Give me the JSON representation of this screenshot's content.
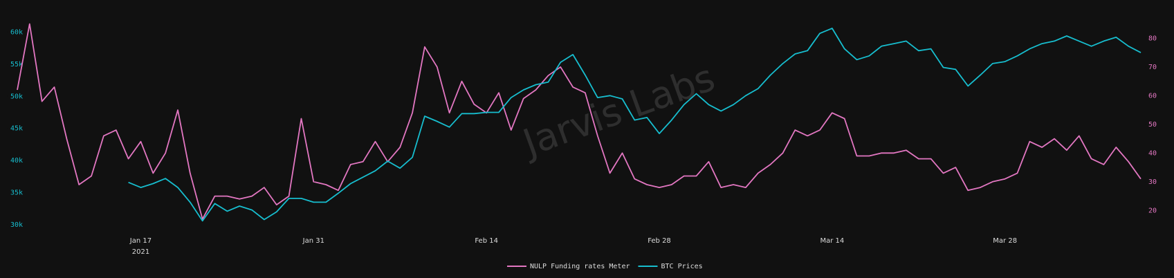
{
  "chart_data": {
    "type": "line",
    "watermark": "Jarvis Labs",
    "x": [
      "2021-01-07",
      "2021-01-08",
      "2021-01-09",
      "2021-01-10",
      "2021-01-11",
      "2021-01-12",
      "2021-01-13",
      "2021-01-14",
      "2021-01-15",
      "2021-01-16",
      "2021-01-17",
      "2021-01-18",
      "2021-01-19",
      "2021-01-20",
      "2021-01-21",
      "2021-01-22",
      "2021-01-23",
      "2021-01-24",
      "2021-01-25",
      "2021-01-26",
      "2021-01-27",
      "2021-01-28",
      "2021-01-29",
      "2021-01-30",
      "2021-01-31",
      "2021-02-01",
      "2021-02-02",
      "2021-02-03",
      "2021-02-04",
      "2021-02-05",
      "2021-02-06",
      "2021-02-07",
      "2021-02-08",
      "2021-02-09",
      "2021-02-10",
      "2021-02-11",
      "2021-02-12",
      "2021-02-13",
      "2021-02-14",
      "2021-02-15",
      "2021-02-16",
      "2021-02-17",
      "2021-02-18",
      "2021-02-19",
      "2021-02-20",
      "2021-02-21",
      "2021-02-22",
      "2021-02-23",
      "2021-02-24",
      "2021-02-25",
      "2021-02-26",
      "2021-02-27",
      "2021-02-28",
      "2021-03-01",
      "2021-03-02",
      "2021-03-03",
      "2021-03-04",
      "2021-03-05",
      "2021-03-06",
      "2021-03-07",
      "2021-03-08",
      "2021-03-09",
      "2021-03-10",
      "2021-03-11",
      "2021-03-12",
      "2021-03-13",
      "2021-03-14",
      "2021-03-15",
      "2021-03-16",
      "2021-03-17",
      "2021-03-18",
      "2021-03-19",
      "2021-03-20",
      "2021-03-21",
      "2021-03-22",
      "2021-03-23",
      "2021-03-24",
      "2021-03-25",
      "2021-03-26",
      "2021-03-27",
      "2021-03-28",
      "2021-03-29",
      "2021-03-30",
      "2021-03-31",
      "2021-04-01",
      "2021-04-02",
      "2021-04-03",
      "2021-04-04",
      "2021-04-05",
      "2021-04-06",
      "2021-04-07",
      "2021-04-08"
    ],
    "xlim": [
      "2021-01-07",
      "2021-04-08"
    ],
    "xticks": [
      {
        "value": "2021-01-17",
        "label": "Jan 17"
      },
      {
        "value": "2021-01-31",
        "label": "Jan 31"
      },
      {
        "value": "2021-02-14",
        "label": "Feb 14"
      },
      {
        "value": "2021-02-28",
        "label": "Feb 28"
      },
      {
        "value": "2021-03-14",
        "label": "Mar 14"
      },
      {
        "value": "2021-03-28",
        "label": "Mar 28"
      }
    ],
    "xtick_year": "2021",
    "ylim": [
      29400,
      61500
    ],
    "yticks": [
      {
        "value": 30000,
        "label": "30k"
      },
      {
        "value": 35000,
        "label": "35k"
      },
      {
        "value": 40000,
        "label": "40k"
      },
      {
        "value": 45000,
        "label": "45k"
      },
      {
        "value": 50000,
        "label": "50k"
      },
      {
        "value": 55000,
        "label": "55k"
      },
      {
        "value": 60000,
        "label": "60k"
      }
    ],
    "y2lim": [
      13.7,
      85.5
    ],
    "y2ticks": [
      20,
      30,
      40,
      50,
      60,
      70,
      80
    ],
    "legend": "bottom",
    "series": [
      {
        "name": "NULP Funding rates Meter",
        "color": "#e377c2",
        "axis": "y2",
        "values": [
          62,
          85,
          58,
          63,
          45,
          29,
          32,
          46,
          48,
          38,
          44,
          33,
          40,
          55,
          33,
          17,
          25,
          25,
          24,
          25,
          28,
          22,
          25,
          52,
          30,
          29,
          27,
          36,
          37,
          44,
          37,
          42,
          54,
          77,
          70,
          54,
          65,
          57,
          54,
          61,
          48,
          59,
          62,
          67,
          70,
          63,
          61,
          46,
          33,
          40,
          31,
          29,
          28,
          29,
          32,
          32,
          37,
          28,
          29,
          28,
          33,
          36,
          40,
          48,
          46,
          48,
          54,
          52,
          39,
          39,
          40,
          40,
          41,
          38,
          38,
          33,
          35,
          27,
          28,
          30,
          31,
          33,
          44,
          42,
          45,
          41,
          46,
          38,
          36,
          42,
          37,
          31
        ]
      },
      {
        "name": "BTC Prices",
        "color": "#17becf",
        "axis": "y",
        "values": [
          null,
          null,
          null,
          null,
          null,
          null,
          null,
          null,
          null,
          36600,
          35800,
          36400,
          37200,
          35800,
          33500,
          30600,
          33300,
          32100,
          32900,
          32300,
          30800,
          32000,
          34100,
          34100,
          33500,
          33500,
          34900,
          36400,
          37400,
          38400,
          39900,
          38800,
          40500,
          46900,
          46100,
          45200,
          47300,
          47300,
          47500,
          47500,
          49800,
          51000,
          51800,
          52200,
          55300,
          56500,
          53300,
          49800,
          50100,
          49600,
          46300,
          46700,
          44200,
          46300,
          48700,
          50400,
          48700,
          47700,
          48700,
          50100,
          51200,
          53300,
          55100,
          56600,
          57100,
          59800,
          60600,
          57400,
          55700,
          56300,
          57800,
          58200,
          58600,
          57100,
          57400,
          54500,
          54200,
          51600,
          53300,
          55100,
          55400,
          56300,
          57400,
          58200,
          58600,
          59400,
          58600,
          57800,
          58600,
          59200,
          57800,
          56800
        ]
      }
    ]
  }
}
